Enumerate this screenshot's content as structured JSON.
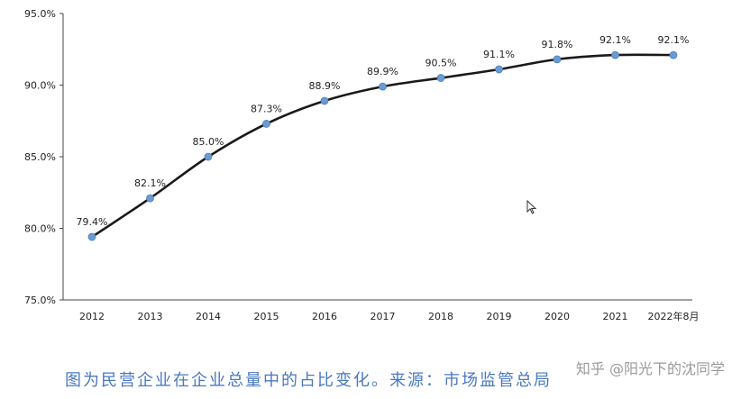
{
  "chart_data": {
    "type": "line",
    "categories": [
      "2012",
      "2013",
      "2014",
      "2015",
      "2016",
      "2017",
      "2018",
      "2019",
      "2020",
      "2021",
      "2022年8月"
    ],
    "values": [
      79.4,
      82.1,
      85.0,
      87.3,
      88.9,
      89.9,
      90.5,
      91.1,
      91.8,
      92.1,
      92.1
    ],
    "data_labels": [
      "79.4%",
      "82.1%",
      "85.0%",
      "87.3%",
      "88.9%",
      "89.9%",
      "90.5%",
      "91.1%",
      "91.8%",
      "92.1%",
      "92.1%"
    ],
    "y_ticks": [
      "75.0%",
      "80.0%",
      "85.0%",
      "90.0%",
      "95.0%"
    ],
    "ylim": [
      75,
      95
    ],
    "grid": false,
    "line_color": "#1a1a1a",
    "marker_color": "#6b9bd1"
  },
  "caption": "图为民营企业在企业总量中的占比变化。来源：市场监管总局",
  "watermark": "知乎 @阳光下的沈同学",
  "colors": {
    "caption": "#4a78c0"
  }
}
